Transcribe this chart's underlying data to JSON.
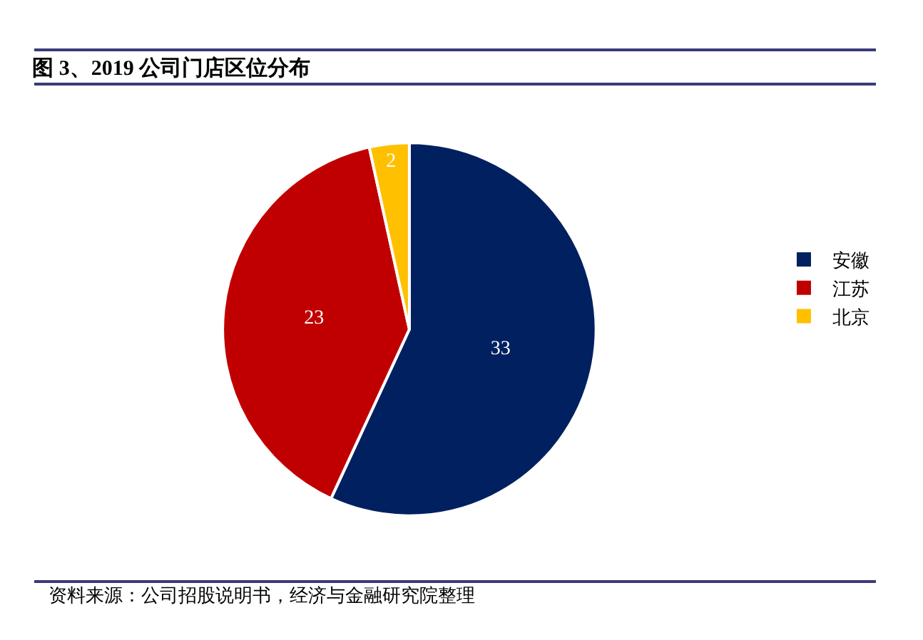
{
  "chart_data": {
    "type": "pie",
    "title": "图 3、2019 公司门店区位分布",
    "categories": [
      "安徽",
      "江苏",
      "北京"
    ],
    "values": [
      33,
      23,
      2
    ],
    "colors": [
      "#002060",
      "#c00000",
      "#ffc000"
    ],
    "data_labels": true,
    "legend": "right",
    "annotations": [
      "资料来源：公司招股说明书，经济与金融研究院整理"
    ]
  }
}
